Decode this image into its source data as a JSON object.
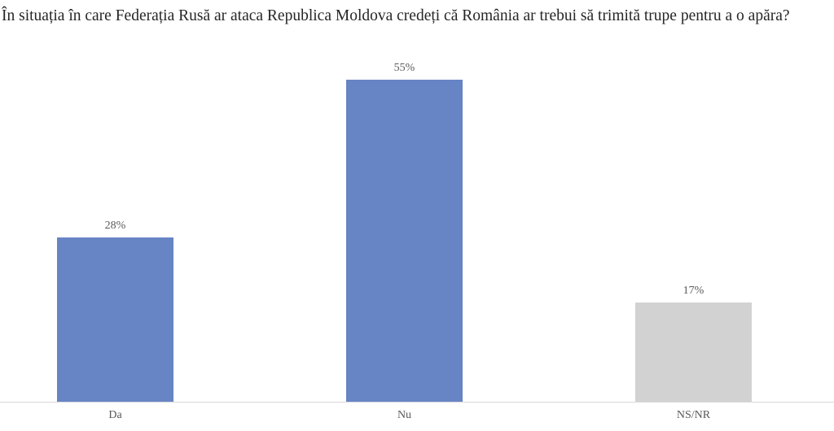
{
  "colors": {
    "background": "#FFFFFF",
    "title_text": "#262626",
    "label_text": "#595959",
    "axis_line": "#D9D9D9",
    "bar_blue": "#6784C4",
    "bar_gray": "#D2D2D2"
  },
  "chart_data": {
    "type": "bar",
    "title": "În situația în care Federația Rusă ar ataca Republica Moldova credeți că România ar trebui să trimită trupe pentru a o apăra?",
    "categories": [
      "Da",
      "Nu",
      "NS/NR"
    ],
    "values": [
      28,
      55,
      17
    ],
    "value_labels": [
      "28%",
      "55%",
      "17%"
    ],
    "bar_colors": [
      "#6784C4",
      "#6784C4",
      "#D2D2D2"
    ],
    "xlabel": "",
    "ylabel": "",
    "ylim": [
      0,
      60
    ],
    "grid": false,
    "legend": false,
    "value_labels_position": "above-bars",
    "category_labels_position": "below-axis"
  }
}
